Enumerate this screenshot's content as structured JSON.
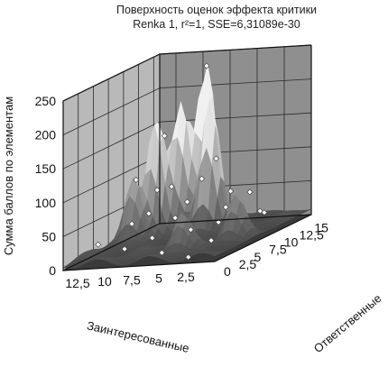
{
  "chart_data": {
    "type": "surface3d",
    "title": "Поверхность оценок эффекта критики",
    "subtitle": "Renka 1, r²=1, SSE=6,31089e-30",
    "zlabel": "Сумма баллов по элементам",
    "xlabel": "Заинтересованные",
    "ylabel": "Ответственные",
    "z_ticks": [
      "0",
      "50",
      "100",
      "150",
      "200",
      "250"
    ],
    "x_ticks": [
      "0",
      "2,5",
      "5",
      "7,5",
      "10",
      "12,5"
    ],
    "y_ticks": [
      "0",
      "2,5",
      "5",
      "7,5",
      "10",
      "12,5",
      "15"
    ],
    "zlim": [
      0,
      250
    ],
    "xlim": [
      0,
      14
    ],
    "ylim": [
      0,
      16
    ],
    "grid": true,
    "colors": {
      "wall": "#8f8f8f",
      "floor": "#3a3a3a",
      "surface_high": "#f2f2f2",
      "surface_low": "#4a4a4a"
    },
    "peaks": [
      {
        "x": 8.0,
        "y": 13.0,
        "z": 240
      },
      {
        "x": 6.5,
        "y": 11.0,
        "z": 200
      },
      {
        "x": 9.5,
        "y": 11.5,
        "z": 180
      },
      {
        "x": 11.0,
        "y": 10.0,
        "z": 175
      },
      {
        "x": 12.0,
        "y": 8.0,
        "z": 90
      },
      {
        "x": 2.0,
        "y": 7.0,
        "z": 60
      },
      {
        "x": 5.0,
        "y": 3.5,
        "z": 55
      }
    ],
    "points": [
      {
        "x": 8.0,
        "y": 13.0,
        "z": 240
      },
      {
        "x": 10.5,
        "y": 10.5,
        "z": 150
      },
      {
        "x": 12.0,
        "y": 8.5,
        "z": 95
      },
      {
        "x": 6.0,
        "y": 11.0,
        "z": 110
      },
      {
        "x": 9.0,
        "y": 9.0,
        "z": 80
      },
      {
        "x": 7.0,
        "y": 8.0,
        "z": 60
      },
      {
        "x": 4.0,
        "y": 9.0,
        "z": 45
      },
      {
        "x": 3.0,
        "y": 6.0,
        "z": 35
      },
      {
        "x": 5.0,
        "y": 5.0,
        "z": 30
      },
      {
        "x": 2.0,
        "y": 3.0,
        "z": 20
      },
      {
        "x": 8.0,
        "y": 4.0,
        "z": 25
      },
      {
        "x": 10.0,
        "y": 3.0,
        "z": 15
      },
      {
        "x": 11.0,
        "y": 6.0,
        "z": 40
      },
      {
        "x": 6.0,
        "y": 2.0,
        "z": 10
      },
      {
        "x": 4.0,
        "y": 13.0,
        "z": 50
      },
      {
        "x": 9.0,
        "y": 14.0,
        "z": 70
      },
      {
        "x": 12.0,
        "y": 12.0,
        "z": 65
      },
      {
        "x": 1.0,
        "y": 10.0,
        "z": 30
      },
      {
        "x": 3.0,
        "y": 1.0,
        "z": 5
      },
      {
        "x": 7.0,
        "y": 6.0,
        "z": 45
      },
      {
        "x": 5.5,
        "y": 12.5,
        "z": 55
      },
      {
        "x": 10.0,
        "y": 7.0,
        "z": 50
      },
      {
        "x": 13.0,
        "y": 4.0,
        "z": 20
      },
      {
        "x": 2.5,
        "y": 12.0,
        "z": 25
      }
    ]
  }
}
